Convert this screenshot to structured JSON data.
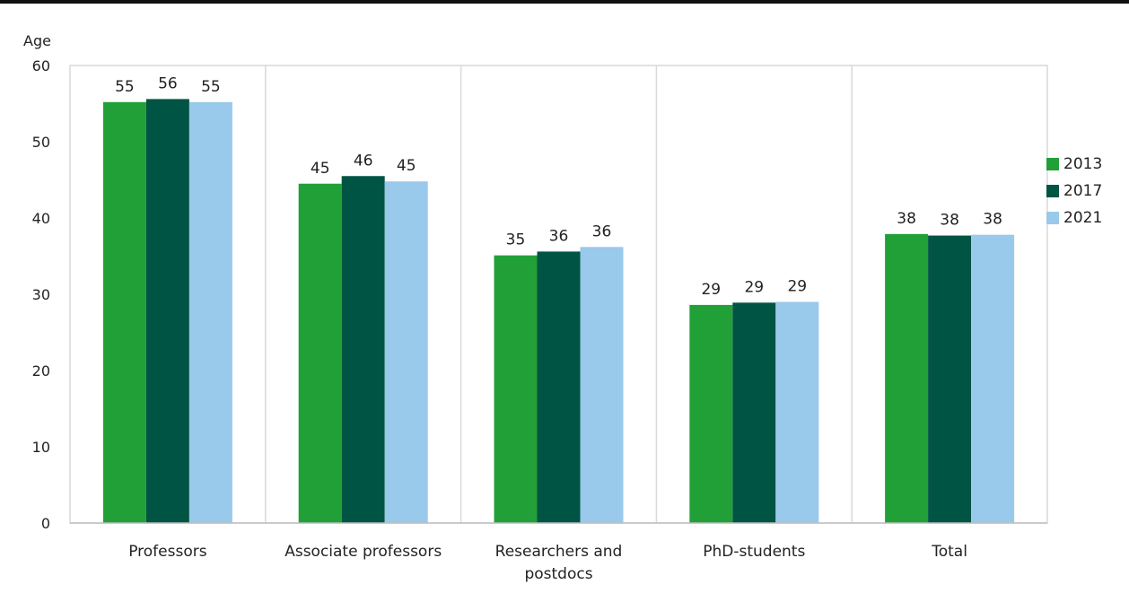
{
  "chart_data": {
    "type": "bar",
    "ylabel": "Age",
    "xlabel": "",
    "ylim": [
      0,
      60
    ],
    "yticks": [
      0,
      10,
      20,
      30,
      40,
      50,
      60
    ],
    "grid": true,
    "legend_placement": "right",
    "categories": [
      [
        "Professors"
      ],
      [
        "Associate professors"
      ],
      [
        "Researchers and",
        "postdocs"
      ],
      [
        "PhD-students"
      ],
      [
        "Total"
      ]
    ],
    "series": [
      {
        "name": "2013",
        "color": "#21a038",
        "values": [
          55.2,
          44.5,
          35.1,
          28.6,
          37.9
        ],
        "labels": [
          "55",
          "45",
          "35",
          "29",
          "38"
        ]
      },
      {
        "name": "2017",
        "color": "#005443",
        "values": [
          55.6,
          45.5,
          35.6,
          28.9,
          37.7
        ],
        "labels": [
          "56",
          "46",
          "36",
          "29",
          "38"
        ]
      },
      {
        "name": "2021",
        "color": "#99c9eb",
        "values": [
          55.2,
          44.8,
          36.2,
          29.0,
          37.8
        ],
        "labels": [
          "55",
          "45",
          "36",
          "29",
          "38"
        ]
      }
    ]
  }
}
